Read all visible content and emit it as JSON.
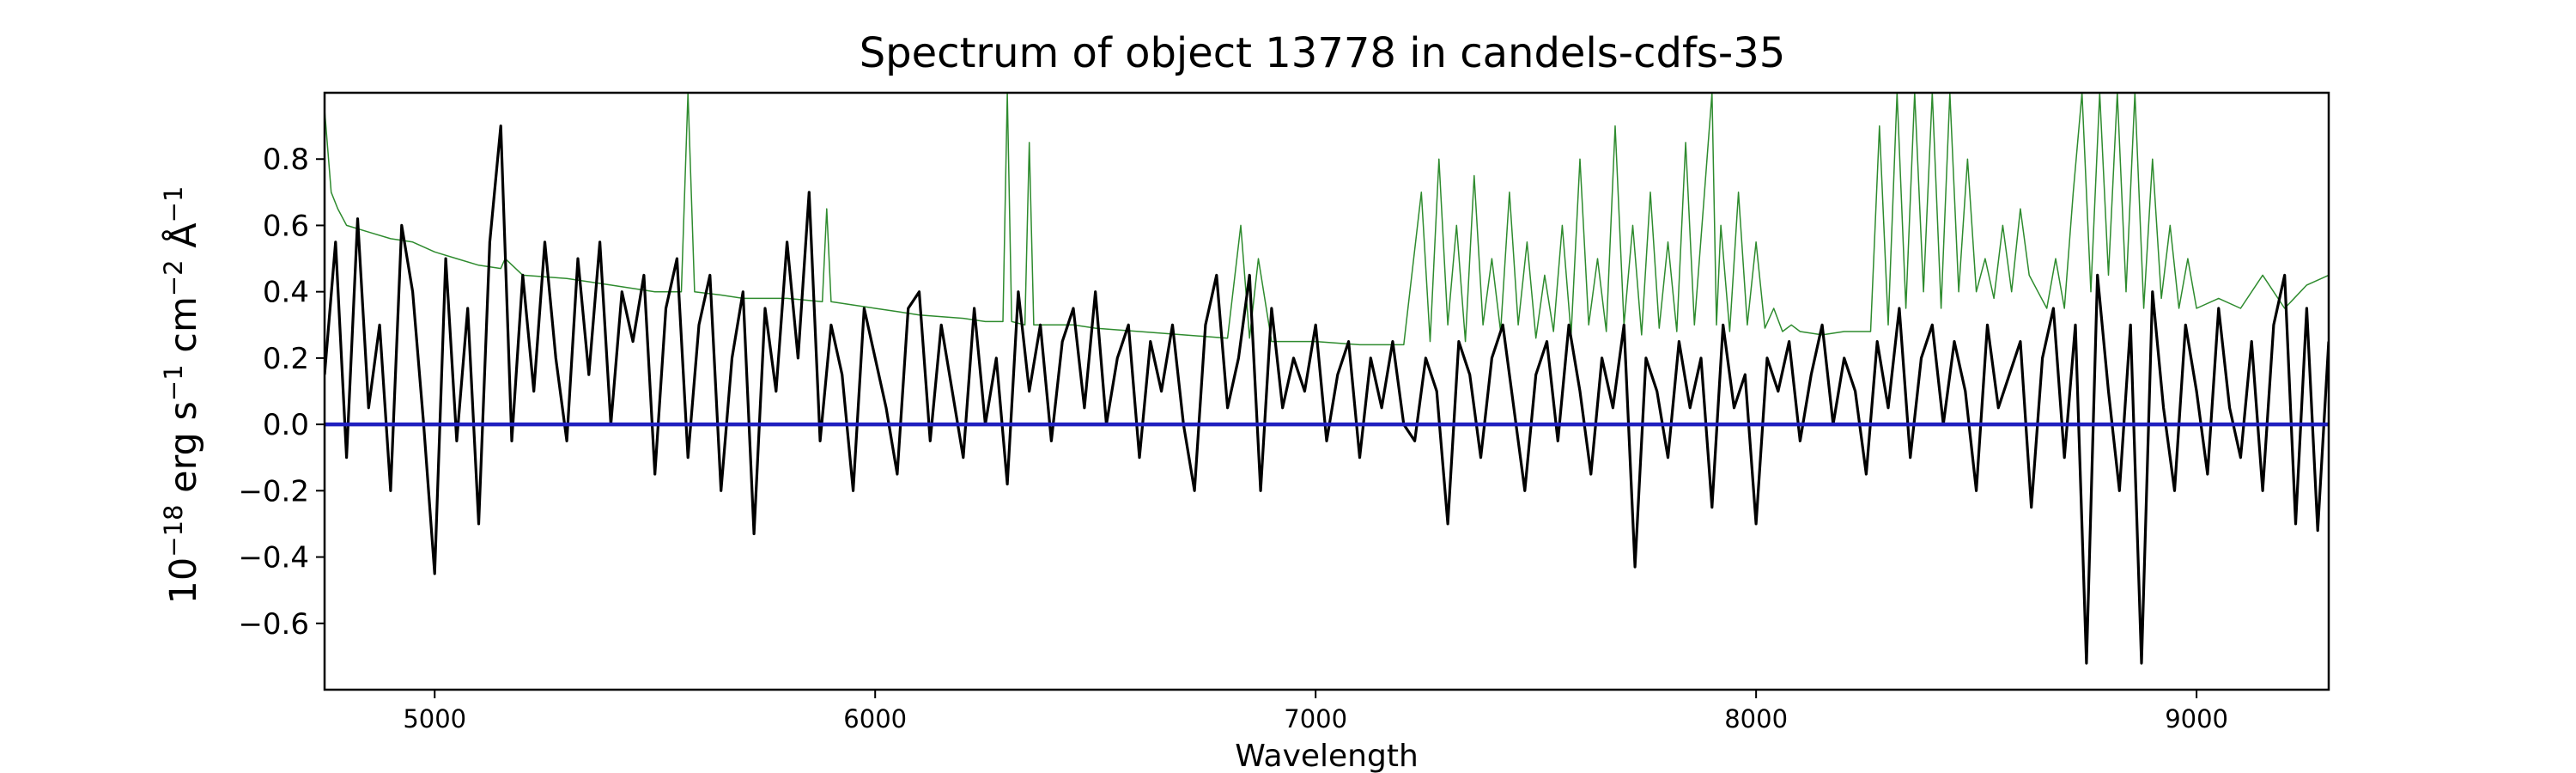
{
  "chart_data": {
    "type": "line",
    "title": "Spectrum of object 13778 in candels-cdfs-35",
    "xlabel": "Wavelength",
    "ylabel": {
      "parts": [
        "10",
        "−18",
        " erg s",
        "−1",
        " cm",
        "−2",
        " Å",
        "−1"
      ]
    },
    "xlim": [
      4750,
      9300
    ],
    "ylim": [
      -0.8,
      1.0
    ],
    "x_ticks": [
      5000,
      6000,
      7000,
      8000,
      9000
    ],
    "y_ticks": [
      -0.6,
      -0.4,
      -0.2,
      0.0,
      0.2,
      0.4,
      0.6,
      0.8
    ],
    "x_tick_labels": [
      "5000",
      "6000",
      "7000",
      "8000",
      "9000"
    ],
    "y_tick_labels": [
      "−0.6",
      "−0.4",
      "−0.2",
      "0.0",
      "0.2",
      "0.4",
      "0.6",
      "0.8"
    ],
    "grid": false,
    "series": [
      {
        "role": "flux",
        "color": "#000000",
        "x": [
          4750,
          4775,
          4800,
          4825,
          4850,
          4875,
          4900,
          4925,
          4950,
          4975,
          5000,
          5025,
          5050,
          5075,
          5100,
          5125,
          5150,
          5175,
          5200,
          5225,
          5250,
          5275,
          5300,
          5325,
          5350,
          5375,
          5400,
          5425,
          5450,
          5475,
          5500,
          5525,
          5550,
          5575,
          5600,
          5625,
          5650,
          5675,
          5700,
          5725,
          5750,
          5775,
          5800,
          5825,
          5850,
          5875,
          5900,
          5925,
          5950,
          5975,
          6000,
          6025,
          6050,
          6075,
          6100,
          6125,
          6150,
          6175,
          6200,
          6225,
          6250,
          6275,
          6300,
          6325,
          6350,
          6375,
          6400,
          6425,
          6450,
          6475,
          6500,
          6525,
          6550,
          6575,
          6600,
          6625,
          6650,
          6675,
          6700,
          6725,
          6750,
          6775,
          6800,
          6825,
          6850,
          6875,
          6900,
          6925,
          6950,
          6975,
          7000,
          7025,
          7050,
          7075,
          7100,
          7125,
          7150,
          7175,
          7200,
          7225,
          7250,
          7275,
          7300,
          7325,
          7350,
          7375,
          7400,
          7425,
          7450,
          7475,
          7500,
          7525,
          7550,
          7575,
          7600,
          7625,
          7650,
          7675,
          7700,
          7725,
          7750,
          7775,
          7800,
          7825,
          7850,
          7875,
          7900,
          7925,
          7950,
          7975,
          8000,
          8025,
          8050,
          8075,
          8100,
          8125,
          8150,
          8175,
          8200,
          8225,
          8250,
          8275,
          8300,
          8325,
          8350,
          8375,
          8400,
          8425,
          8450,
          8475,
          8500,
          8525,
          8550,
          8575,
          8600,
          8625,
          8650,
          8675,
          8700,
          8725,
          8750,
          8775,
          8800,
          8825,
          8850,
          8875,
          8900,
          8925,
          8950,
          8975,
          9000,
          9025,
          9050,
          9075,
          9100,
          9125,
          9150,
          9175,
          9200,
          9225,
          9250,
          9275,
          9300
        ],
        "y": [
          0.15,
          0.55,
          -0.1,
          0.62,
          0.05,
          0.3,
          -0.2,
          0.6,
          0.4,
          0.0,
          -0.45,
          0.5,
          -0.05,
          0.35,
          -0.3,
          0.55,
          0.9,
          -0.05,
          0.45,
          0.1,
          0.55,
          0.2,
          -0.05,
          0.5,
          0.15,
          0.55,
          0.0,
          0.4,
          0.25,
          0.45,
          -0.15,
          0.35,
          0.5,
          -0.1,
          0.3,
          0.45,
          -0.2,
          0.2,
          0.4,
          -0.33,
          0.35,
          0.1,
          0.55,
          0.2,
          0.7,
          -0.05,
          0.3,
          0.15,
          -0.2,
          0.35,
          0.2,
          0.05,
          -0.15,
          0.35,
          0.4,
          -0.05,
          0.3,
          0.1,
          -0.1,
          0.35,
          0.0,
          0.2,
          -0.18,
          0.4,
          0.1,
          0.3,
          -0.05,
          0.25,
          0.35,
          0.05,
          0.4,
          0.0,
          0.2,
          0.3,
          -0.1,
          0.25,
          0.1,
          0.3,
          0.0,
          -0.2,
          0.3,
          0.45,
          0.05,
          0.2,
          0.45,
          -0.2,
          0.35,
          0.05,
          0.2,
          0.1,
          0.3,
          -0.05,
          0.15,
          0.25,
          -0.1,
          0.2,
          0.05,
          0.25,
          0.0,
          -0.05,
          0.2,
          0.1,
          -0.3,
          0.25,
          0.15,
          -0.1,
          0.2,
          0.3,
          0.05,
          -0.2,
          0.15,
          0.25,
          -0.05,
          0.3,
          0.1,
          -0.15,
          0.2,
          0.05,
          0.3,
          -0.43,
          0.2,
          0.1,
          -0.1,
          0.25,
          0.05,
          0.2,
          -0.25,
          0.3,
          0.05,
          0.15,
          -0.3,
          0.2,
          0.1,
          0.25,
          -0.05,
          0.15,
          0.3,
          0.0,
          0.2,
          0.1,
          -0.15,
          0.25,
          0.05,
          0.35,
          -0.1,
          0.2,
          0.3,
          0.0,
          0.25,
          0.1,
          -0.2,
          0.3,
          0.05,
          0.15,
          0.25,
          -0.25,
          0.2,
          0.35,
          -0.1,
          0.3,
          -0.72,
          0.45,
          0.1,
          -0.2,
          0.3,
          -0.72,
          0.4,
          0.05,
          -0.2,
          0.3,
          0.1,
          -0.15,
          0.35,
          0.05,
          -0.1,
          0.25,
          -0.2,
          0.3,
          0.45,
          -0.3,
          0.35,
          -0.32,
          0.25
        ]
      },
      {
        "role": "error",
        "color": "#2e8b2e",
        "x": [
          4750,
          4765,
          4780,
          4800,
          4850,
          4900,
          4950,
          5000,
          5050,
          5100,
          5150,
          5160,
          5200,
          5300,
          5400,
          5500,
          5560,
          5575,
          5590,
          5650,
          5700,
          5800,
          5880,
          5890,
          5900,
          5950,
          6000,
          6050,
          6100,
          6200,
          6250,
          6290,
          6300,
          6310,
          6340,
          6350,
          6360,
          6400,
          6450,
          6500,
          6600,
          6700,
          6800,
          6830,
          6850,
          6870,
          6900,
          6950,
          7000,
          7100,
          7200,
          7240,
          7260,
          7280,
          7300,
          7320,
          7340,
          7360,
          7380,
          7400,
          7420,
          7440,
          7460,
          7480,
          7500,
          7520,
          7540,
          7560,
          7580,
          7600,
          7620,
          7640,
          7660,
          7680,
          7700,
          7720,
          7740,
          7760,
          7780,
          7800,
          7820,
          7840,
          7860,
          7880,
          7900,
          7910,
          7920,
          7940,
          7960,
          7980,
          8000,
          8020,
          8040,
          8060,
          8080,
          8100,
          8150,
          8200,
          8260,
          8280,
          8300,
          8320,
          8340,
          8360,
          8380,
          8400,
          8420,
          8440,
          8460,
          8480,
          8500,
          8520,
          8540,
          8560,
          8580,
          8600,
          8620,
          8640,
          8660,
          8680,
          8700,
          8720,
          8740,
          8760,
          8780,
          8800,
          8820,
          8840,
          8860,
          8880,
          8900,
          8920,
          8940,
          8960,
          8980,
          9000,
          9050,
          9100,
          9150,
          9200,
          9250,
          9300
        ],
        "y": [
          0.95,
          0.7,
          0.65,
          0.6,
          0.58,
          0.56,
          0.55,
          0.52,
          0.5,
          0.48,
          0.47,
          0.5,
          0.45,
          0.44,
          0.42,
          0.4,
          0.4,
          1.0,
          0.4,
          0.39,
          0.38,
          0.38,
          0.37,
          0.65,
          0.37,
          0.36,
          0.35,
          0.34,
          0.33,
          0.32,
          0.31,
          0.31,
          1.0,
          0.31,
          0.3,
          0.85,
          0.3,
          0.3,
          0.3,
          0.29,
          0.28,
          0.27,
          0.26,
          0.6,
          0.26,
          0.5,
          0.25,
          0.25,
          0.25,
          0.24,
          0.24,
          0.7,
          0.25,
          0.8,
          0.3,
          0.6,
          0.25,
          0.75,
          0.3,
          0.5,
          0.28,
          0.7,
          0.3,
          0.55,
          0.26,
          0.45,
          0.28,
          0.6,
          0.27,
          0.8,
          0.3,
          0.5,
          0.28,
          0.9,
          0.3,
          0.6,
          0.27,
          0.7,
          0.29,
          0.55,
          0.28,
          0.85,
          0.3,
          0.65,
          1.0,
          0.3,
          0.6,
          0.28,
          0.7,
          0.3,
          0.55,
          0.29,
          0.35,
          0.28,
          0.3,
          0.28,
          0.27,
          0.28,
          0.28,
          0.9,
          0.3,
          1.0,
          0.35,
          1.0,
          0.4,
          1.0,
          0.35,
          1.0,
          0.4,
          0.8,
          0.4,
          0.5,
          0.38,
          0.6,
          0.4,
          0.65,
          0.45,
          0.4,
          0.35,
          0.5,
          0.35,
          0.7,
          1.0,
          0.4,
          1.0,
          0.45,
          1.0,
          0.4,
          1.0,
          0.35,
          0.8,
          0.38,
          0.6,
          0.35,
          0.5,
          0.35,
          0.38,
          0.35,
          0.45,
          0.35,
          0.42,
          0.45
        ]
      },
      {
        "role": "zero",
        "color": "#1f1fbf",
        "x": [
          4750,
          9300
        ],
        "y": [
          0.0,
          0.0
        ]
      }
    ]
  }
}
